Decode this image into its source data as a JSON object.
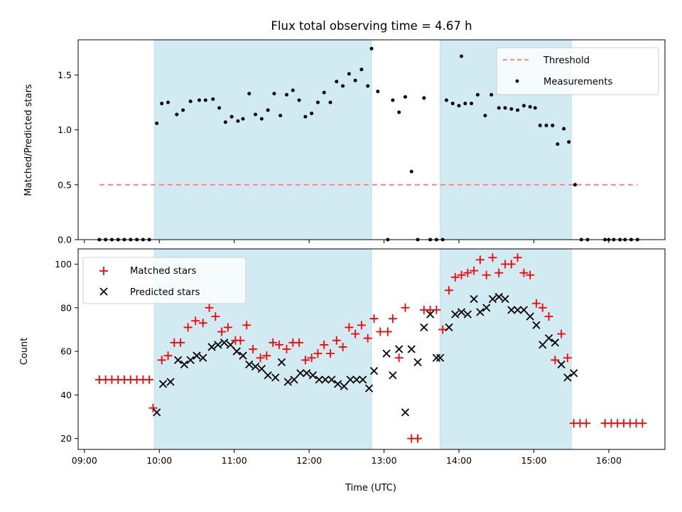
{
  "chart_data": [
    {
      "type": "scatter",
      "title": "Flux total observing time = 4.67 h",
      "xlabel": "",
      "ylabel": "Matched/Predicted stars",
      "xlim": [
        "08:55",
        "16:45"
      ],
      "ylim": [
        0,
        1.82
      ],
      "yticks": [
        0.0,
        0.5,
        1.0,
        1.5
      ],
      "ytick_labels": [
        "0.0",
        "0.5",
        "1.0",
        "1.5"
      ],
      "shaded_intervals": [
        [
          "09:56",
          "12:50"
        ],
        [
          "13:45",
          "15:30"
        ]
      ],
      "shade_color": "#add8e6",
      "legend": {
        "position": "upper right",
        "entries": [
          "Threshold",
          "Measurements"
        ]
      },
      "series": [
        {
          "name": "Threshold",
          "kind": "dashed-line",
          "color": "#ff7f7f",
          "x": [
            "09:12",
            "16:23"
          ],
          "y": [
            0.5,
            0.5
          ]
        },
        {
          "name": "Measurements",
          "kind": "points",
          "color": "#000000",
          "x": [
            "09:12",
            "09:17",
            "09:22",
            "09:27",
            "09:32",
            "09:37",
            "09:42",
            "09:47",
            "09:52",
            "09:58",
            "10:02",
            "10:07",
            "10:14",
            "10:19",
            "10:25",
            "10:32",
            "10:37",
            "10:43",
            "10:48",
            "10:53",
            "10:58",
            "11:03",
            "11:07",
            "11:12",
            "11:17",
            "11:22",
            "11:27",
            "11:32",
            "11:37",
            "11:42",
            "11:47",
            "11:52",
            "11:57",
            "12:02",
            "12:07",
            "12:12",
            "12:17",
            "12:22",
            "12:27",
            "12:32",
            "12:37",
            "12:42",
            "12:47",
            "12:50",
            "12:55",
            "13:03",
            "13:07",
            "13:12",
            "13:17",
            "13:22",
            "13:27",
            "13:32",
            "13:37",
            "13:42",
            "13:47",
            "13:50",
            "13:55",
            "14:00",
            "14:02",
            "14:05",
            "14:10",
            "14:15",
            "14:21",
            "14:26",
            "14:32",
            "14:37",
            "14:42",
            "14:47",
            "14:52",
            "14:57",
            "15:01",
            "15:05",
            "15:10",
            "15:15",
            "15:19",
            "15:24",
            "15:28",
            "15:33",
            "15:38",
            "15:43",
            "15:57",
            "16:00",
            "16:04",
            "16:09",
            "16:13",
            "16:18",
            "16:23"
          ],
          "y": [
            0,
            0,
            0,
            0,
            0,
            0,
            0,
            0,
            0,
            1.06,
            1.24,
            1.25,
            1.14,
            1.18,
            1.26,
            1.27,
            1.27,
            1.28,
            1.2,
            1.07,
            1.12,
            1.08,
            1.1,
            1.33,
            1.14,
            1.1,
            1.18,
            1.33,
            1.13,
            1.32,
            1.36,
            1.27,
            1.12,
            1.15,
            1.25,
            1.34,
            1.25,
            1.44,
            1.4,
            1.51,
            1.45,
            1.55,
            1.4,
            1.74,
            1.35,
            0,
            1.27,
            1.16,
            1.3,
            0.62,
            0,
            1.29,
            0,
            0,
            0,
            1.27,
            1.24,
            1.22,
            1.67,
            1.24,
            1.24,
            1.32,
            1.13,
            1.32,
            1.2,
            1.2,
            1.19,
            1.18,
            1.22,
            1.21,
            1.2,
            1.04,
            1.04,
            1.04,
            0.87,
            1.01,
            0.89,
            0.5,
            0,
            0,
            0,
            0,
            0,
            0,
            0,
            0,
            0
          ]
        }
      ]
    },
    {
      "type": "scatter",
      "title": "",
      "xlabel": "Time (UTC)",
      "ylabel": "Count",
      "xlim": [
        "08:55",
        "16:45"
      ],
      "ylim": [
        15,
        107
      ],
      "yticks": [
        20,
        40,
        60,
        80,
        100
      ],
      "ytick_labels": [
        "20",
        "40",
        "60",
        "80",
        "100"
      ],
      "xticks": [
        "09:00",
        "10:00",
        "11:00",
        "12:00",
        "13:00",
        "14:00",
        "15:00",
        "16:00"
      ],
      "shaded_intervals": [
        [
          "09:56",
          "12:50"
        ],
        [
          "13:45",
          "15:30"
        ]
      ],
      "shade_color": "#add8e6",
      "legend": {
        "position": "upper left",
        "entries": [
          "Matched stars",
          "Predicted stars"
        ]
      },
      "series": [
        {
          "name": "Matched stars",
          "marker": "+",
          "color": "#ff0000",
          "x": [
            "09:12",
            "09:17",
            "09:22",
            "09:27",
            "09:32",
            "09:37",
            "09:42",
            "09:47",
            "09:52",
            "09:55",
            "10:02",
            "10:07",
            "10:12",
            "10:17",
            "10:23",
            "10:29",
            "10:35",
            "10:40",
            "10:45",
            "10:50",
            "10:55",
            "11:01",
            "11:05",
            "11:10",
            "11:15",
            "11:21",
            "11:26",
            "11:31",
            "11:36",
            "11:42",
            "11:47",
            "11:52",
            "11:57",
            "12:02",
            "12:07",
            "12:12",
            "12:17",
            "12:22",
            "12:27",
            "12:32",
            "12:37",
            "12:42",
            "12:47",
            "12:52",
            "12:57",
            "13:03",
            "13:07",
            "13:12",
            "13:17",
            "13:22",
            "13:27",
            "13:32",
            "13:37",
            "13:42",
            "13:47",
            "13:52",
            "13:57",
            "14:02",
            "14:07",
            "14:12",
            "14:17",
            "14:22",
            "14:27",
            "14:32",
            "14:37",
            "14:42",
            "14:47",
            "14:52",
            "14:57",
            "15:02",
            "15:07",
            "15:12",
            "15:17",
            "15:22",
            "15:27",
            "15:32",
            "15:37",
            "15:42",
            "15:57",
            "16:02",
            "16:07",
            "16:12",
            "16:17",
            "16:22",
            "16:27"
          ],
          "y": [
            47,
            47,
            47,
            47,
            47,
            47,
            47,
            47,
            47,
            34,
            56,
            58,
            64,
            64,
            71,
            74,
            73,
            80,
            76,
            69,
            71,
            65,
            65,
            72,
            61,
            57,
            58,
            64,
            63,
            61,
            64,
            64,
            56,
            57,
            59,
            63,
            59,
            65,
            62,
            71,
            68,
            72,
            66,
            75,
            69,
            69,
            75,
            57,
            80,
            20,
            20,
            79,
            79,
            79,
            70,
            88,
            94,
            95,
            96,
            97,
            102,
            95,
            103,
            96,
            100,
            100,
            103,
            96,
            95,
            82,
            80,
            76,
            56,
            68,
            57,
            27,
            27,
            27,
            27,
            27,
            27,
            27,
            27,
            27,
            27
          ]
        },
        {
          "name": "Predicted stars",
          "marker": "x",
          "color": "#000000",
          "x": [
            "09:58",
            "10:03",
            "10:09",
            "10:15",
            "10:20",
            "10:25",
            "10:30",
            "10:35",
            "10:42",
            "10:47",
            "10:52",
            "10:57",
            "11:02",
            "11:07",
            "11:12",
            "11:17",
            "11:22",
            "11:27",
            "11:33",
            "11:38",
            "11:43",
            "11:48",
            "11:53",
            "11:58",
            "12:03",
            "12:08",
            "12:13",
            "12:18",
            "12:23",
            "12:28",
            "12:33",
            "12:38",
            "12:43",
            "12:48",
            "12:52",
            "13:02",
            "13:07",
            "13:12",
            "13:17",
            "13:22",
            "13:27",
            "13:32",
            "13:37",
            "13:42",
            "13:45",
            "13:52",
            "13:57",
            "14:02",
            "14:07",
            "14:12",
            "14:17",
            "14:22",
            "14:27",
            "14:32",
            "14:37",
            "14:42",
            "14:47",
            "14:52",
            "14:57",
            "15:02",
            "15:07",
            "15:12",
            "15:17",
            "15:22",
            "15:27",
            "15:32"
          ],
          "y": [
            32,
            45,
            46,
            56,
            54,
            56,
            58,
            57,
            62,
            63,
            64,
            63,
            60,
            58,
            54,
            53,
            52,
            49,
            48,
            55,
            46,
            47,
            50,
            50,
            49,
            47,
            47,
            47,
            45,
            44,
            47,
            47,
            47,
            43,
            51,
            59,
            49,
            61,
            32,
            61,
            55,
            71,
            77,
            57,
            57,
            71,
            77,
            78,
            77,
            84,
            78,
            80,
            84,
            85,
            84,
            79,
            79,
            79,
            76,
            72,
            63,
            66,
            64,
            54,
            48,
            50
          ]
        }
      ]
    }
  ]
}
